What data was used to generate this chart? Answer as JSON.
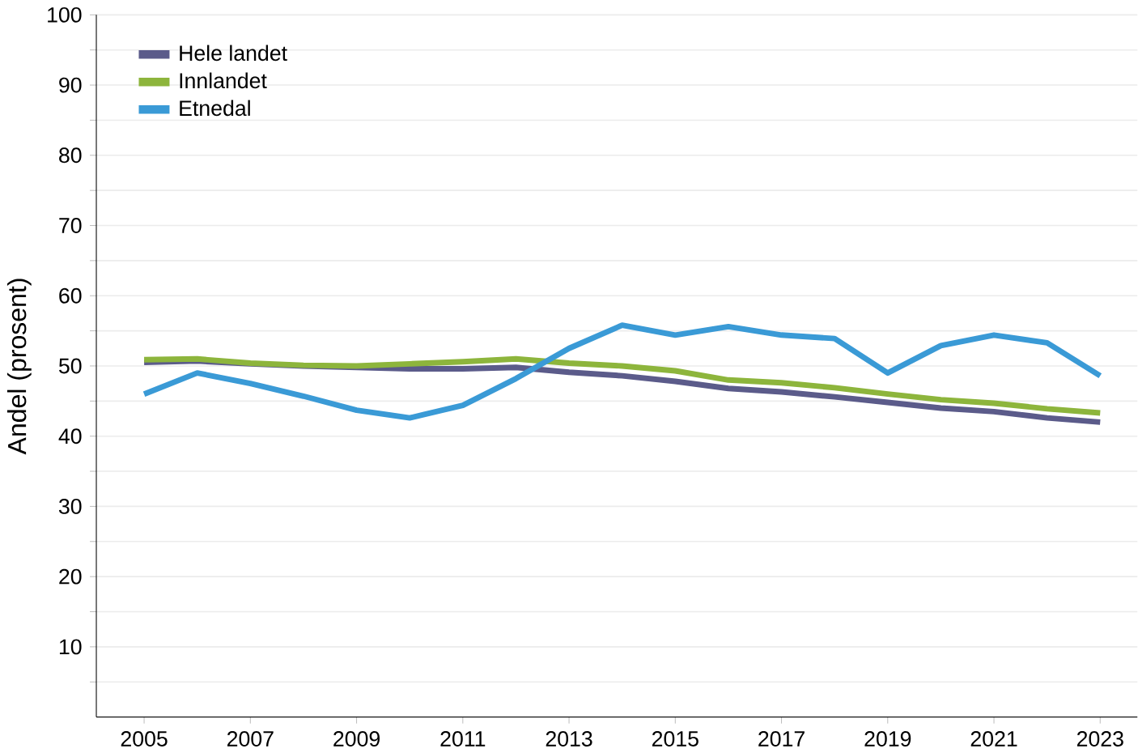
{
  "chart_data": {
    "type": "line",
    "ylabel": "Andel (prosent)",
    "x": [
      2005,
      2006,
      2007,
      2008,
      2009,
      2010,
      2011,
      2012,
      2013,
      2014,
      2015,
      2016,
      2017,
      2018,
      2019,
      2020,
      2021,
      2022,
      2023
    ],
    "series": [
      {
        "name": "Hele landet",
        "color": "#5b5b8a",
        "values": [
          50.5,
          50.7,
          50.3,
          50,
          49.8,
          49.6,
          49.6,
          49.8,
          49.1,
          48.6,
          47.8,
          46.8,
          46.3,
          45.6,
          44.8,
          44,
          43.5,
          42.6,
          42
        ]
      },
      {
        "name": "Innlandet",
        "color": "#8db53c",
        "values": [
          50.9,
          51,
          50.4,
          50.1,
          50,
          50.3,
          50.6,
          51,
          50.4,
          50,
          49.3,
          48,
          47.6,
          46.9,
          46,
          45.2,
          44.7,
          43.9,
          43.3
        ]
      },
      {
        "name": "Etnedal",
        "color": "#3a9ad6",
        "values": [
          46,
          49,
          47.5,
          45.7,
          43.7,
          42.6,
          44.4,
          48.2,
          52.5,
          55.8,
          54.4,
          55.6,
          54.4,
          53.9,
          49,
          52.9,
          54.4,
          53.3,
          48.6
        ]
      }
    ],
    "xlim": [
      2004.1,
      2023.7
    ],
    "xticks": [
      2005,
      2007,
      2009,
      2011,
      2013,
      2015,
      2017,
      2019,
      2021,
      2023
    ],
    "ylim": [
      0,
      100
    ],
    "yticks": [
      {
        "value": 5,
        "label": null
      },
      10,
      {
        "value": 15,
        "label": null
      },
      20,
      {
        "value": 25,
        "label": null
      },
      30,
      {
        "value": 35,
        "label": null
      },
      40,
      {
        "value": 45,
        "label": null
      },
      50,
      {
        "value": 55,
        "label": null
      },
      60,
      {
        "value": 65,
        "label": null
      },
      70,
      {
        "value": 75,
        "label": null
      },
      80,
      {
        "value": 85,
        "label": null
      },
      90,
      {
        "value": 95,
        "label": null
      },
      100
    ],
    "grid": "y",
    "legend": "top left",
    "marker": "none",
    "line_style": "solid"
  }
}
